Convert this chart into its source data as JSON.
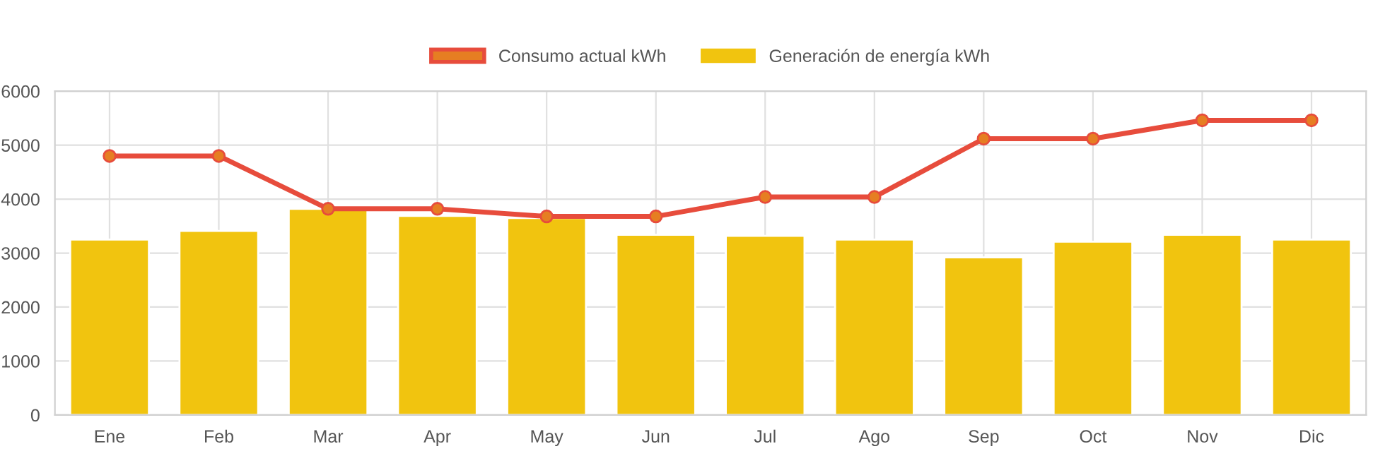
{
  "chart_data": {
    "type": "bar",
    "categories": [
      "Ene",
      "Feb",
      "Mar",
      "Apr",
      "May",
      "Jun",
      "Jul",
      "Ago",
      "Sep",
      "Oct",
      "Nov",
      "Dic"
    ],
    "series": [
      {
        "name": "Consumo actual kWh",
        "type": "line",
        "color": "#e74c3c",
        "marker": "circle",
        "values": [
          4800,
          4800,
          3820,
          3820,
          3680,
          3680,
          4040,
          4040,
          5120,
          5120,
          5460,
          5460
        ]
      },
      {
        "name": "Generación de energía kWh",
        "color": "#f1c40f",
        "values": [
          3250,
          3410,
          3820,
          3690,
          3650,
          3340,
          3320,
          3250,
          2920,
          3210,
          3340,
          3250
        ]
      }
    ],
    "ylim": [
      0,
      6000
    ],
    "yticks": [
      0,
      1000,
      2000,
      3000,
      4000,
      5000,
      6000
    ],
    "grid": true,
    "legend": "top"
  }
}
